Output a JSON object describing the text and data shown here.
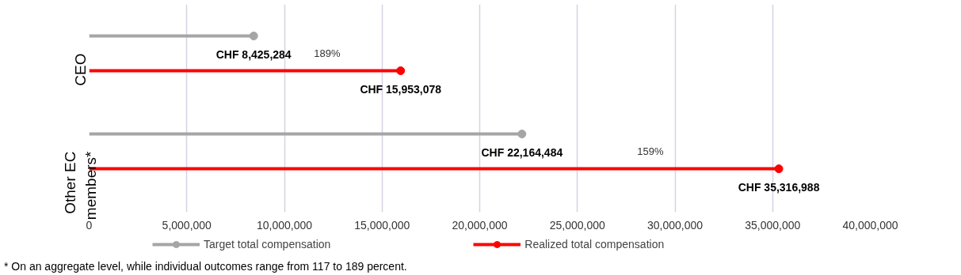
{
  "chart_data": {
    "type": "lollipop",
    "orientation": "horizontal",
    "categories": [
      "CEO",
      "Other EC members*"
    ],
    "series": [
      {
        "name": "Target total compensation",
        "color": "#a5a5a5",
        "values": [
          8425284,
          22164484
        ],
        "value_labels": [
          "CHF 8,425,284",
          "CHF 22,164,484"
        ]
      },
      {
        "name": "Realized total compensation",
        "color": "#ff0000",
        "values": [
          15953078,
          35316988
        ],
        "value_labels": [
          "CHF 15,953,078",
          "CHF 35,316,988"
        ]
      }
    ],
    "xlim": [
      0,
      40000000
    ],
    "xticks": [
      {
        "value": 0,
        "label": "0"
      },
      {
        "value": 5000000,
        "label": "5,000,000"
      },
      {
        "value": 10000000,
        "label": "10,000,000"
      },
      {
        "value": 15000000,
        "label": "15,000,000"
      },
      {
        "value": 20000000,
        "label": "20,000,000"
      },
      {
        "value": 25000000,
        "label": "25,000,000"
      },
      {
        "value": 30000000,
        "label": "30,000,000"
      },
      {
        "value": 35000000,
        "label": "35,000,000"
      },
      {
        "value": 40000000,
        "label": "40,000,000"
      }
    ],
    "grid": "x",
    "legend": "bottom",
    "marker": "circle",
    "annotations": [
      "189%",
      "159%",
      "* On an aggregate level, while individual outcomes range from 117 to 189 percent."
    ]
  }
}
